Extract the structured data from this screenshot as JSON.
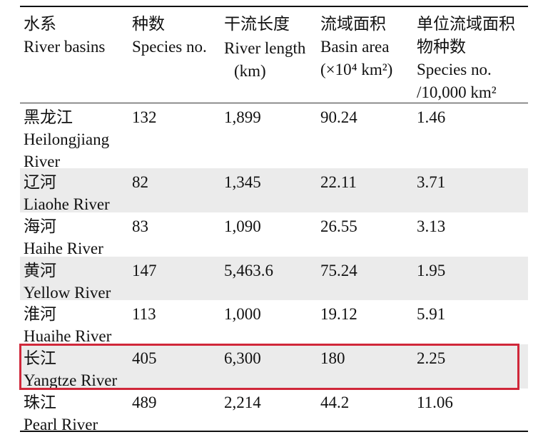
{
  "headers": [
    {
      "zh": "水系",
      "en": [
        "River basins"
      ]
    },
    {
      "zh": "种数",
      "en": [
        "Species no."
      ]
    },
    {
      "zh": "干流长度",
      "en": [
        "River length",
        "(km)"
      ]
    },
    {
      "zh": "流域面积",
      "en": [
        "Basin area",
        "(×10⁴ km²)"
      ]
    },
    {
      "zh": "单位流域面积",
      "zh2": "物种数",
      "en": [
        "Species no.",
        "/10,000 km²"
      ]
    }
  ],
  "rows": [
    {
      "zh": "黑龙江",
      "en": [
        "Heilongjiang",
        "River"
      ],
      "species": "132",
      "length": "1,899",
      "area": "90.24",
      "density": "1.46"
    },
    {
      "zh": "辽河",
      "en": [
        "Liaohe River"
      ],
      "species": "82",
      "length": "1,345",
      "area": "22.11",
      "density": "3.71"
    },
    {
      "zh": "海河",
      "en": [
        "Haihe River"
      ],
      "species": "83",
      "length": "1,090",
      "area": "26.55",
      "density": "3.13"
    },
    {
      "zh": "黄河",
      "en": [
        "Yellow River"
      ],
      "species": "147",
      "length": "5,463.6",
      "area": "75.24",
      "density": "1.95"
    },
    {
      "zh": "淮河",
      "en": [
        "Huaihe River"
      ],
      "species": "113",
      "length": "1,000",
      "area": "19.12",
      "density": "5.91"
    },
    {
      "zh": "长江",
      "en": [
        "Yangtze River"
      ],
      "species": "405",
      "length": "6,300",
      "area": "180",
      "density": "2.25"
    },
    {
      "zh": "珠江",
      "en": [
        "Pearl River"
      ],
      "species": "489",
      "length": "2,214",
      "area": "44.2",
      "density": "11.06"
    }
  ],
  "highlight_color": "#d0273a",
  "stripe_color": "#ebebeb"
}
